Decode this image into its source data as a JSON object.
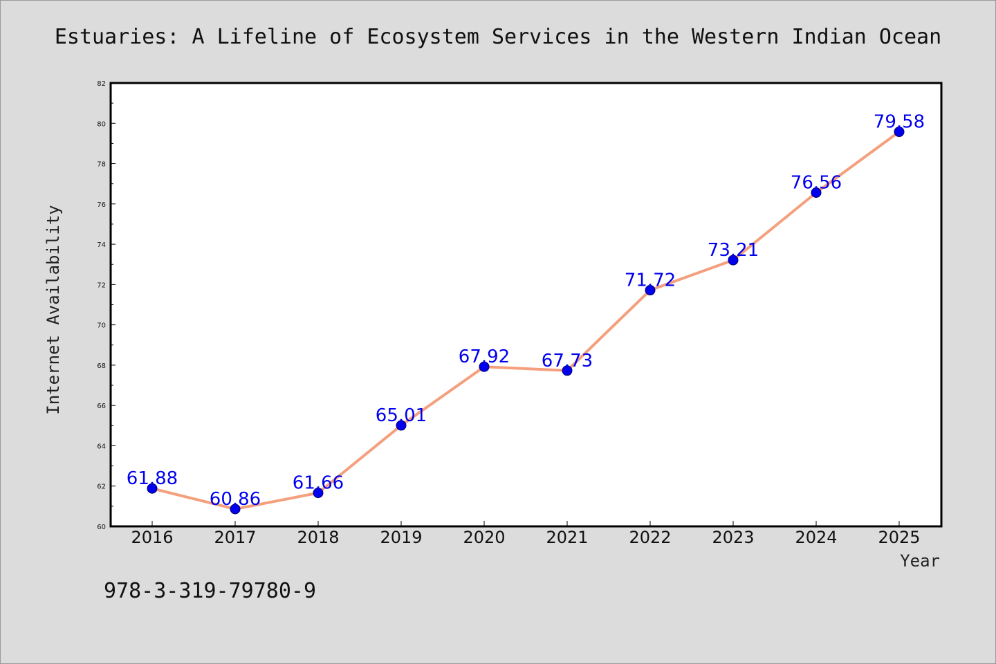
{
  "chart_data": {
    "type": "line",
    "title": "Estuaries: A Lifeline of Ecosystem Services in the Western Indian Ocean",
    "xlabel": "Year",
    "ylabel": "Internet Availability",
    "categories": [
      "2016",
      "2017",
      "2018",
      "2019",
      "2020",
      "2021",
      "2022",
      "2023",
      "2024",
      "2025"
    ],
    "values": [
      61.88,
      60.86,
      61.66,
      65.01,
      67.92,
      67.73,
      71.72,
      73.21,
      76.56,
      79.58
    ],
    "data_labels": [
      "61.88",
      "60.86",
      "61.66",
      "65.01",
      "67.92",
      "67.73",
      "71.72",
      "73.21",
      "76.56",
      "79.58"
    ],
    "ylim": [
      60,
      82
    ],
    "yticks": [
      "60",
      "62",
      "64",
      "66",
      "68",
      "70",
      "72",
      "74",
      "76",
      "78",
      "80",
      "82"
    ],
    "grid": false,
    "legend": "none",
    "colors": {
      "line": "#f4a07e",
      "marker": "#0000ee",
      "marker_edge": "#000066",
      "label": "#0000ee",
      "background": "#dcdcdc",
      "plot_background": "#ffffff"
    }
  },
  "footnote": "978-3-319-79780-9"
}
